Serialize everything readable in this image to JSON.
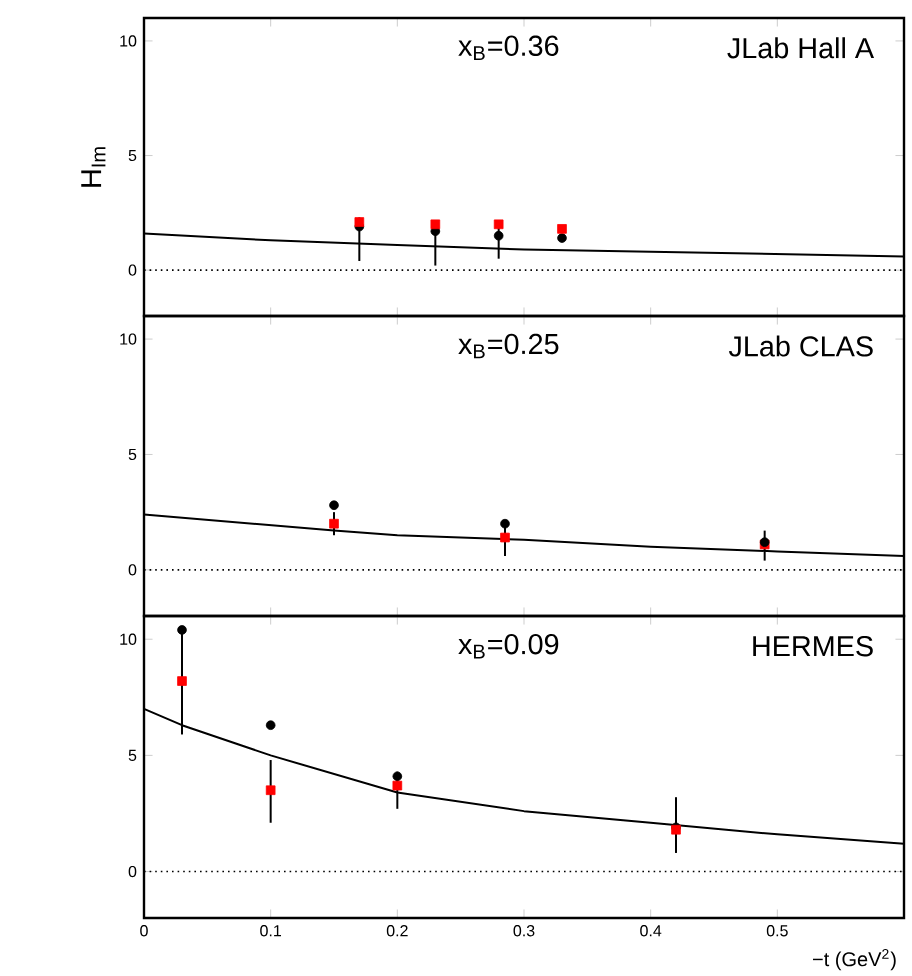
{
  "chart_data": [
    {
      "type": "scatter",
      "ylabel": "H$_{Im}$",
      "annotations": [
        "x$_{B}$=0.36",
        "JLab Hall A"
      ],
      "x": [
        0.17,
        0.23,
        0.28,
        0.33
      ],
      "xlim": [
        0,
        0.6
      ],
      "ylim": [
        -2,
        11
      ],
      "xticks": [
        0,
        0.1,
        0.2,
        0.3,
        0.4,
        0.5
      ],
      "yticks": [
        0,
        5,
        10
      ],
      "tick_labels": "y",
      "ref_lines": [
        {
          "axis": "y",
          "value": 0,
          "line_style": "dotted"
        }
      ],
      "series": [
        {
          "marker": "circle",
          "color": "#000000",
          "values": [
            1.9,
            1.7,
            1.5,
            1.4
          ],
          "errors": [
            [
              0.4,
              2.3
            ],
            [
              0.2,
              2.0
            ],
            [
              0.5,
              2.0
            ],
            null
          ]
        },
        {
          "marker": "square",
          "color": "#ff0000",
          "values": [
            2.1,
            2.0,
            2.0,
            1.8
          ]
        },
        {
          "type": "line",
          "color": "#000000",
          "x": [
            0,
            0.1,
            0.2,
            0.3,
            0.4,
            0.5,
            0.6
          ],
          "values": [
            1.6,
            1.3,
            1.1,
            0.9,
            0.8,
            0.7,
            0.6
          ]
        }
      ]
    },
    {
      "type": "scatter",
      "annotations": [
        "x$_{B}$=0.25",
        "JLab CLAS"
      ],
      "x": [
        0.15,
        0.285,
        0.49
      ],
      "xlim": [
        0,
        0.6
      ],
      "ylim": [
        -2,
        11
      ],
      "xticks": [
        0,
        0.1,
        0.2,
        0.3,
        0.4,
        0.5
      ],
      "yticks": [
        0,
        5,
        10
      ],
      "tick_labels": "y",
      "ref_lines": [
        {
          "axis": "y",
          "value": 0,
          "line_style": "dotted"
        }
      ],
      "series": [
        {
          "marker": "square",
          "color": "#ff0000",
          "values": [
            2.0,
            1.4,
            1.1
          ],
          "errors": [
            [
              1.5,
              2.5
            ],
            [
              0.6,
              2.1
            ],
            [
              0.4,
              1.7
            ]
          ]
        },
        {
          "marker": "circle",
          "color": "#000000",
          "values": [
            2.8,
            2.0,
            1.2
          ]
        },
        {
          "type": "line",
          "color": "#000000",
          "x": [
            0,
            0.15,
            0.2,
            0.3,
            0.4,
            0.5,
            0.6
          ],
          "values": [
            2.4,
            1.7,
            1.5,
            1.3,
            1.0,
            0.8,
            0.6
          ]
        }
      ]
    },
    {
      "type": "scatter",
      "xlabel": "−t (GeV$^{2}$)",
      "annotations": [
        "x$_{B}$=0.09",
        "HERMES"
      ],
      "x": [
        0.03,
        0.1,
        0.2,
        0.42
      ],
      "xlim": [
        0,
        0.6
      ],
      "ylim": [
        -2,
        11
      ],
      "xticks": [
        0,
        0.1,
        0.2,
        0.3,
        0.4,
        0.5
      ],
      "yticks": [
        0,
        5,
        10
      ],
      "ref_lines": [
        {
          "axis": "y",
          "value": 0,
          "line_style": "dotted"
        }
      ],
      "series": [
        {
          "marker": "circle",
          "color": "#000000",
          "values": [
            10.4,
            6.3,
            4.1,
            1.9
          ]
        },
        {
          "marker": "square",
          "color": "#ff0000",
          "values": [
            8.2,
            3.5,
            3.7,
            1.8
          ],
          "errors": [
            [
              5.9,
              10.4
            ],
            [
              2.1,
              4.8
            ],
            [
              2.7,
              4.3
            ],
            [
              0.8,
              3.2
            ]
          ]
        },
        {
          "type": "line",
          "color": "#000000",
          "x": [
            0,
            0.03,
            0.1,
            0.2,
            0.3,
            0.4,
            0.5,
            0.6
          ],
          "values": [
            7.0,
            6.3,
            5.0,
            3.4,
            2.6,
            2.1,
            1.6,
            1.2
          ]
        }
      ]
    }
  ]
}
